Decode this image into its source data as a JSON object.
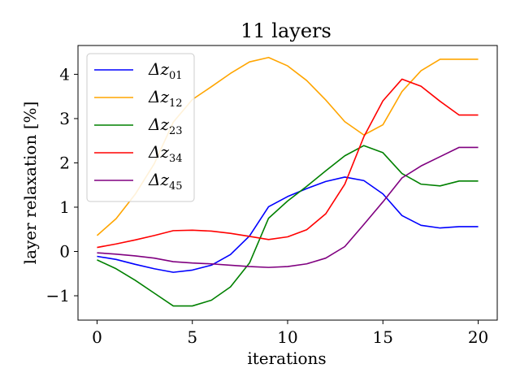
{
  "chart_data": {
    "type": "line",
    "title": "11 layers",
    "xlabel": "iterations",
    "ylabel": "layer relaxation [%]",
    "xlim": [
      -1,
      21
    ],
    "ylim": [
      -1.55,
      4.65
    ],
    "xticks": [
      0,
      5,
      10,
      15,
      20
    ],
    "yticks": [
      -1,
      0,
      1,
      2,
      3,
      4
    ],
    "ytick_labels": [
      "−1",
      "0",
      "1",
      "2",
      "3",
      "4"
    ],
    "legend_position": "top-left",
    "x": [
      0,
      1,
      2,
      3,
      4,
      5,
      6,
      7,
      8,
      9,
      10,
      11,
      12,
      13,
      14,
      15,
      16,
      17,
      18,
      19,
      20
    ],
    "series": [
      {
        "name": "Δz",
        "sub": "01",
        "color": "#0000ff",
        "values": [
          -0.11,
          -0.18,
          -0.29,
          -0.39,
          -0.47,
          -0.42,
          -0.31,
          -0.07,
          0.35,
          1.01,
          1.24,
          1.42,
          1.58,
          1.68,
          1.6,
          1.3,
          0.81,
          0.59,
          0.53,
          0.56,
          0.56
        ]
      },
      {
        "name": "Δz",
        "sub": "12",
        "color": "#ffa500",
        "values": [
          0.36,
          0.74,
          1.29,
          1.98,
          2.92,
          3.43,
          3.72,
          4.02,
          4.28,
          4.38,
          4.19,
          3.86,
          3.42,
          2.93,
          2.63,
          2.86,
          3.61,
          4.08,
          4.34,
          4.34,
          4.34
        ]
      },
      {
        "name": "Δz",
        "sub": "23",
        "color": "#008000",
        "values": [
          -0.19,
          -0.39,
          -0.65,
          -0.94,
          -1.23,
          -1.23,
          -1.1,
          -0.8,
          -0.26,
          0.75,
          1.14,
          1.47,
          1.82,
          2.16,
          2.39,
          2.23,
          1.76,
          1.52,
          1.48,
          1.59,
          1.59
        ]
      },
      {
        "name": "Δz",
        "sub": "34",
        "color": "#ff0000",
        "values": [
          0.09,
          0.17,
          0.26,
          0.36,
          0.47,
          0.48,
          0.46,
          0.41,
          0.34,
          0.27,
          0.33,
          0.49,
          0.85,
          1.52,
          2.59,
          3.4,
          3.89,
          3.73,
          3.39,
          3.08,
          3.08
        ]
      },
      {
        "name": "Δz",
        "sub": "45",
        "color": "#800080",
        "values": [
          -0.03,
          -0.06,
          -0.1,
          -0.15,
          -0.23,
          -0.26,
          -0.28,
          -0.31,
          -0.34,
          -0.36,
          -0.34,
          -0.28,
          -0.15,
          0.11,
          0.61,
          1.12,
          1.66,
          1.93,
          2.14,
          2.35,
          2.35
        ]
      }
    ]
  }
}
